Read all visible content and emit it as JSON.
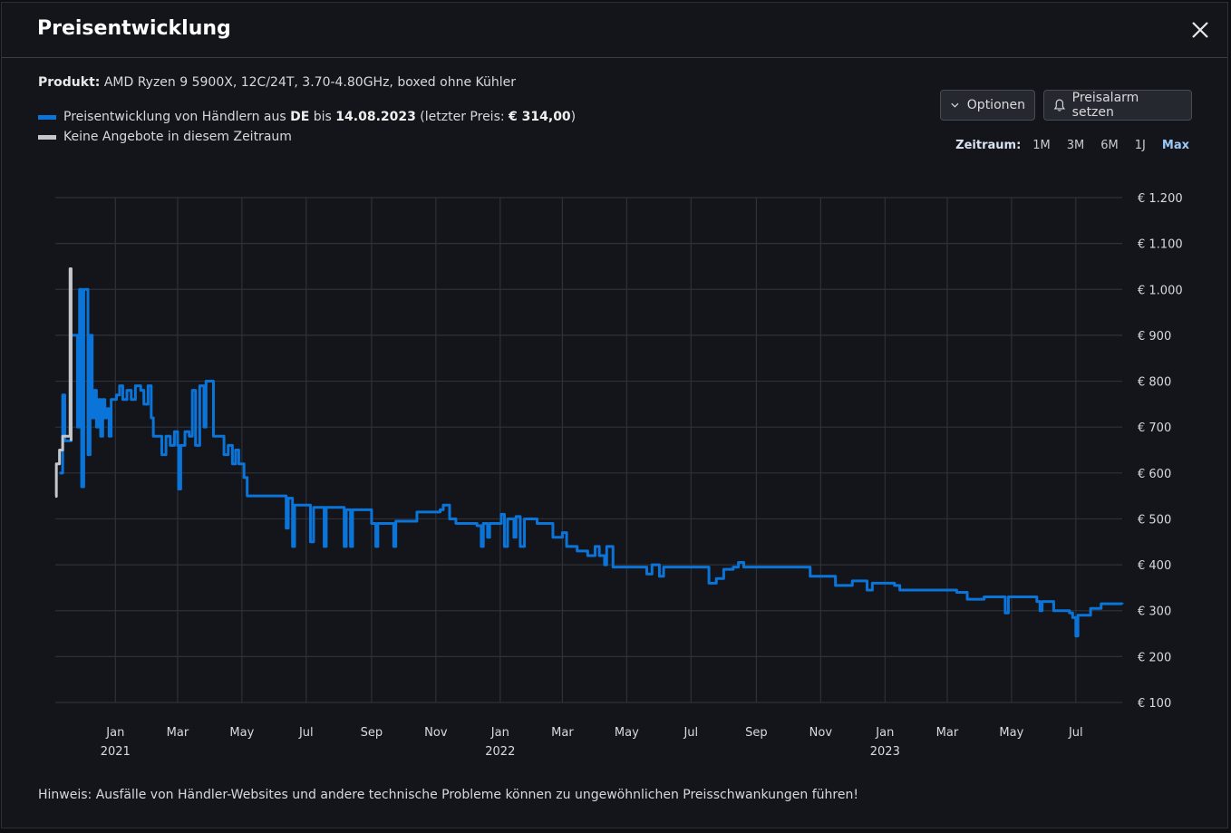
{
  "header": {
    "title": "Preisentwicklung",
    "close_icon": "close-icon"
  },
  "product": {
    "label": "Produkt:",
    "value": "AMD Ryzen 9 5900X, 12C/24T, 3.70-4.80GHz, boxed ohne Kühler"
  },
  "legend": [
    {
      "color": "#0a74d8",
      "pre": "Preisentwicklung von Händlern aus ",
      "country": "DE",
      "mid": " bis ",
      "date": "14.08.2023",
      "post1": " (letzter Preis: ",
      "price": "€ 314,00",
      "post2": ")"
    },
    {
      "color": "#c4c6ca",
      "text": "Keine Angebote in diesem Zeitraum"
    }
  ],
  "toolbar": {
    "options_label": "Optionen",
    "options_icon": "chevron-down-icon",
    "alarm_label": "Preisalarm setzen",
    "alarm_icon": "bell-icon"
  },
  "range": {
    "label": "Zeitraum:",
    "options": [
      "1M",
      "3M",
      "6M",
      "1J",
      "Max"
    ],
    "selected": "Max"
  },
  "hint": "Hinweis: Ausfälle von Händler-Websites und andere technische Probleme können zu ungewöhnlichen Preisschwankungen führen!",
  "chart_data": {
    "type": "line",
    "step": true,
    "xlim": [
      "2020-11-05",
      "2023-08-14"
    ],
    "ylim": [
      100,
      1200
    ],
    "yticks": [
      100,
      200,
      300,
      400,
      500,
      600,
      700,
      800,
      900,
      1000,
      1100,
      1200
    ],
    "ytick_labels": [
      "€ 100",
      "€ 200",
      "€ 300",
      "€ 400",
      "€ 500",
      "€ 600",
      "€ 700",
      "€ 800",
      "€ 900",
      "€ 1.000",
      "€ 1.100",
      "€ 1.200"
    ],
    "xticks": [
      {
        "date": "2021-01-01",
        "label": "Jan",
        "year": "2021"
      },
      {
        "date": "2021-03-01",
        "label": "Mar"
      },
      {
        "date": "2021-05-01",
        "label": "May"
      },
      {
        "date": "2021-07-01",
        "label": "Jul"
      },
      {
        "date": "2021-09-01",
        "label": "Sep"
      },
      {
        "date": "2021-11-01",
        "label": "Nov"
      },
      {
        "date": "2022-01-01",
        "label": "Jan",
        "year": "2022"
      },
      {
        "date": "2022-03-01",
        "label": "Mar"
      },
      {
        "date": "2022-05-01",
        "label": "May"
      },
      {
        "date": "2022-07-01",
        "label": "Jul"
      },
      {
        "date": "2022-09-01",
        "label": "Sep"
      },
      {
        "date": "2022-11-01",
        "label": "Nov"
      },
      {
        "date": "2023-01-01",
        "label": "Jan",
        "year": "2023"
      },
      {
        "date": "2023-03-01",
        "label": "Mar"
      },
      {
        "date": "2023-05-01",
        "label": "May"
      },
      {
        "date": "2023-07-01",
        "label": "Jul"
      }
    ],
    "grid": true,
    "series": [
      {
        "name": "Keine Angebote in diesem Zeitraum",
        "color": "#c4c6ca",
        "points": [
          [
            "2020-11-05",
            549
          ],
          [
            "2020-11-06",
            620
          ],
          [
            "2020-11-08",
            620
          ],
          [
            "2020-11-09",
            650
          ],
          [
            "2020-11-12",
            680
          ],
          [
            "2020-11-18",
            680
          ],
          [
            "2020-11-19",
            1045
          ],
          [
            "2020-11-20",
            670
          ]
        ]
      },
      {
        "name": "Preisentwicklung von Händlern aus DE",
        "color": "#0a74d8",
        "points": [
          [
            "2020-11-09",
            600
          ],
          [
            "2020-11-12",
            770
          ],
          [
            "2020-11-14",
            670
          ],
          [
            "2020-11-20",
            900
          ],
          [
            "2020-11-24",
            900
          ],
          [
            "2020-11-26",
            700
          ],
          [
            "2020-11-28",
            1000
          ],
          [
            "2020-11-30",
            570
          ],
          [
            "2020-12-02",
            1000
          ],
          [
            "2020-12-05",
            1000
          ],
          [
            "2020-12-06",
            640
          ],
          [
            "2020-12-08",
            900
          ],
          [
            "2020-12-10",
            720
          ],
          [
            "2020-12-12",
            780
          ],
          [
            "2020-12-14",
            700
          ],
          [
            "2020-12-16",
            760
          ],
          [
            "2020-12-18",
            680
          ],
          [
            "2020-12-20",
            760
          ],
          [
            "2020-12-22",
            720
          ],
          [
            "2020-12-24",
            740
          ],
          [
            "2020-12-26",
            680
          ],
          [
            "2020-12-28",
            760
          ],
          [
            "2021-01-02",
            770
          ],
          [
            "2021-01-05",
            790
          ],
          [
            "2021-01-08",
            760
          ],
          [
            "2021-01-12",
            780
          ],
          [
            "2021-01-16",
            760
          ],
          [
            "2021-01-20",
            790
          ],
          [
            "2021-01-25",
            780
          ],
          [
            "2021-01-28",
            750
          ],
          [
            "2021-02-01",
            790
          ],
          [
            "2021-02-04",
            720
          ],
          [
            "2021-02-06",
            680
          ],
          [
            "2021-02-10",
            680
          ],
          [
            "2021-02-14",
            640
          ],
          [
            "2021-02-18",
            680
          ],
          [
            "2021-02-22",
            660
          ],
          [
            "2021-02-26",
            690
          ],
          [
            "2021-03-01",
            660
          ],
          [
            "2021-03-02",
            565
          ],
          [
            "2021-03-04",
            660
          ],
          [
            "2021-03-08",
            690
          ],
          [
            "2021-03-12",
            680
          ],
          [
            "2021-03-15",
            780
          ],
          [
            "2021-03-18",
            660
          ],
          [
            "2021-03-22",
            790
          ],
          [
            "2021-03-26",
            700
          ],
          [
            "2021-03-28",
            800
          ],
          [
            "2021-04-02",
            800
          ],
          [
            "2021-04-04",
            680
          ],
          [
            "2021-04-10",
            680
          ],
          [
            "2021-04-14",
            640
          ],
          [
            "2021-04-18",
            660
          ],
          [
            "2021-04-22",
            620
          ],
          [
            "2021-04-25",
            650
          ],
          [
            "2021-04-28",
            620
          ],
          [
            "2021-05-03",
            590
          ],
          [
            "2021-05-06",
            550
          ],
          [
            "2021-06-10",
            550
          ],
          [
            "2021-06-12",
            480
          ],
          [
            "2021-06-14",
            545
          ],
          [
            "2021-06-18",
            440
          ],
          [
            "2021-06-20",
            530
          ],
          [
            "2021-07-01",
            530
          ],
          [
            "2021-07-05",
            450
          ],
          [
            "2021-07-08",
            525
          ],
          [
            "2021-07-17",
            525
          ],
          [
            "2021-07-18",
            440
          ],
          [
            "2021-07-20",
            525
          ],
          [
            "2021-08-05",
            525
          ],
          [
            "2021-08-06",
            440
          ],
          [
            "2021-08-08",
            520
          ],
          [
            "2021-08-12",
            440
          ],
          [
            "2021-08-14",
            520
          ],
          [
            "2021-08-30",
            520
          ],
          [
            "2021-09-01",
            490
          ],
          [
            "2021-09-05",
            440
          ],
          [
            "2021-09-07",
            490
          ],
          [
            "2021-09-20",
            490
          ],
          [
            "2021-09-22",
            440
          ],
          [
            "2021-09-24",
            495
          ],
          [
            "2021-10-10",
            495
          ],
          [
            "2021-10-14",
            515
          ],
          [
            "2021-11-05",
            520
          ],
          [
            "2021-11-08",
            530
          ],
          [
            "2021-11-14",
            500
          ],
          [
            "2021-11-20",
            490
          ],
          [
            "2021-12-10",
            485
          ],
          [
            "2021-12-14",
            440
          ],
          [
            "2021-12-16",
            490
          ],
          [
            "2021-12-20",
            460
          ],
          [
            "2021-12-22",
            490
          ],
          [
            "2022-01-02",
            510
          ],
          [
            "2022-01-05",
            440
          ],
          [
            "2022-01-08",
            500
          ],
          [
            "2022-01-14",
            460
          ],
          [
            "2022-01-16",
            505
          ],
          [
            "2022-01-20",
            440
          ],
          [
            "2022-01-24",
            500
          ],
          [
            "2022-02-05",
            490
          ],
          [
            "2022-02-15",
            490
          ],
          [
            "2022-02-20",
            460
          ],
          [
            "2022-03-01",
            470
          ],
          [
            "2022-03-05",
            440
          ],
          [
            "2022-03-15",
            430
          ],
          [
            "2022-03-25",
            420
          ],
          [
            "2022-04-01",
            440
          ],
          [
            "2022-04-05",
            420
          ],
          [
            "2022-04-10",
            400
          ],
          [
            "2022-04-12",
            440
          ],
          [
            "2022-04-18",
            395
          ],
          [
            "2022-05-15",
            395
          ],
          [
            "2022-05-20",
            380
          ],
          [
            "2022-05-25",
            400
          ],
          [
            "2022-06-01",
            375
          ],
          [
            "2022-06-05",
            395
          ],
          [
            "2022-07-15",
            395
          ],
          [
            "2022-07-18",
            360
          ],
          [
            "2022-07-25",
            370
          ],
          [
            "2022-08-01",
            390
          ],
          [
            "2022-08-10",
            395
          ],
          [
            "2022-08-15",
            405
          ],
          [
            "2022-08-20",
            395
          ],
          [
            "2022-10-20",
            395
          ],
          [
            "2022-10-22",
            375
          ],
          [
            "2022-11-10",
            375
          ],
          [
            "2022-11-15",
            355
          ],
          [
            "2022-12-01",
            365
          ],
          [
            "2022-12-15",
            345
          ],
          [
            "2022-12-20",
            360
          ],
          [
            "2023-01-10",
            355
          ],
          [
            "2023-01-15",
            345
          ],
          [
            "2023-02-20",
            345
          ],
          [
            "2023-03-10",
            340
          ],
          [
            "2023-03-20",
            325
          ],
          [
            "2023-04-05",
            330
          ],
          [
            "2023-04-22",
            330
          ],
          [
            "2023-04-25",
            295
          ],
          [
            "2023-04-28",
            330
          ],
          [
            "2023-05-20",
            330
          ],
          [
            "2023-05-25",
            320
          ],
          [
            "2023-05-28",
            300
          ],
          [
            "2023-05-30",
            320
          ],
          [
            "2023-06-10",
            300
          ],
          [
            "2023-06-25",
            295
          ],
          [
            "2023-06-28",
            285
          ],
          [
            "2023-07-01",
            245
          ],
          [
            "2023-07-03",
            290
          ],
          [
            "2023-07-15",
            305
          ],
          [
            "2023-07-25",
            315
          ],
          [
            "2023-08-10",
            315
          ],
          [
            "2023-08-14",
            314
          ]
        ]
      }
    ]
  }
}
